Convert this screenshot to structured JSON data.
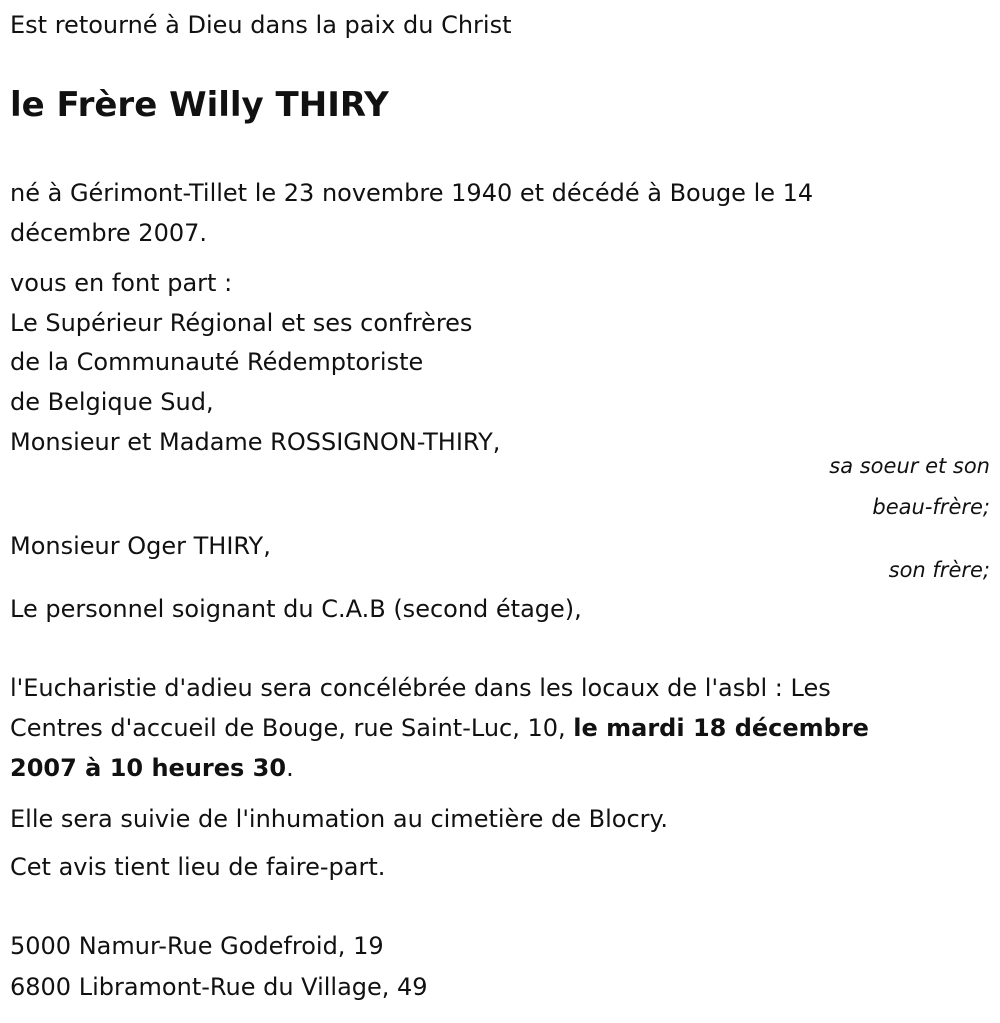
{
  "intro": "Est retourné à Dieu dans la paix du Christ",
  "title": "le Frère Willy THIRY",
  "birth_line1": "né à Gérimont-Tillet le 23 novembre 1940 et décédé à Bouge le 14",
  "birth_line2": "décembre 2007.",
  "announce": "vous en font part :",
  "family": [
    "Le Supérieur Régional et ses confrères",
    "de la Communauté Rédemptoriste",
    "de Belgique Sud,",
    "Monsieur et Madame ROSSIGNON-THIRY,",
    "Monsieur Oger THIRY,",
    "Le personnel soignant du C.A.B (second étage),"
  ],
  "relations": [
    "sa soeur et son",
    "beau-frère;",
    "son frère;"
  ],
  "ceremony": {
    "line1": "l'Eucharistie d'adieu sera concélébrée dans les locaux de l'asbl : Les",
    "line2_plain": "Centres d'accueil de Bouge, rue Saint-Luc, 10, ",
    "line2_bold": "le mardi 18 décembre",
    "line3_bold": "2007 à 10 heures 30",
    "line3_end": "."
  },
  "burial": "Elle sera suivie de l'inhumation au cimetière de Blocry.",
  "notice": "Cet avis tient lieu de faire-part.",
  "addresses": [
    "5000 Namur-Rue Godefroid, 19",
    "6800 Libramont-Rue du Village, 49"
  ]
}
